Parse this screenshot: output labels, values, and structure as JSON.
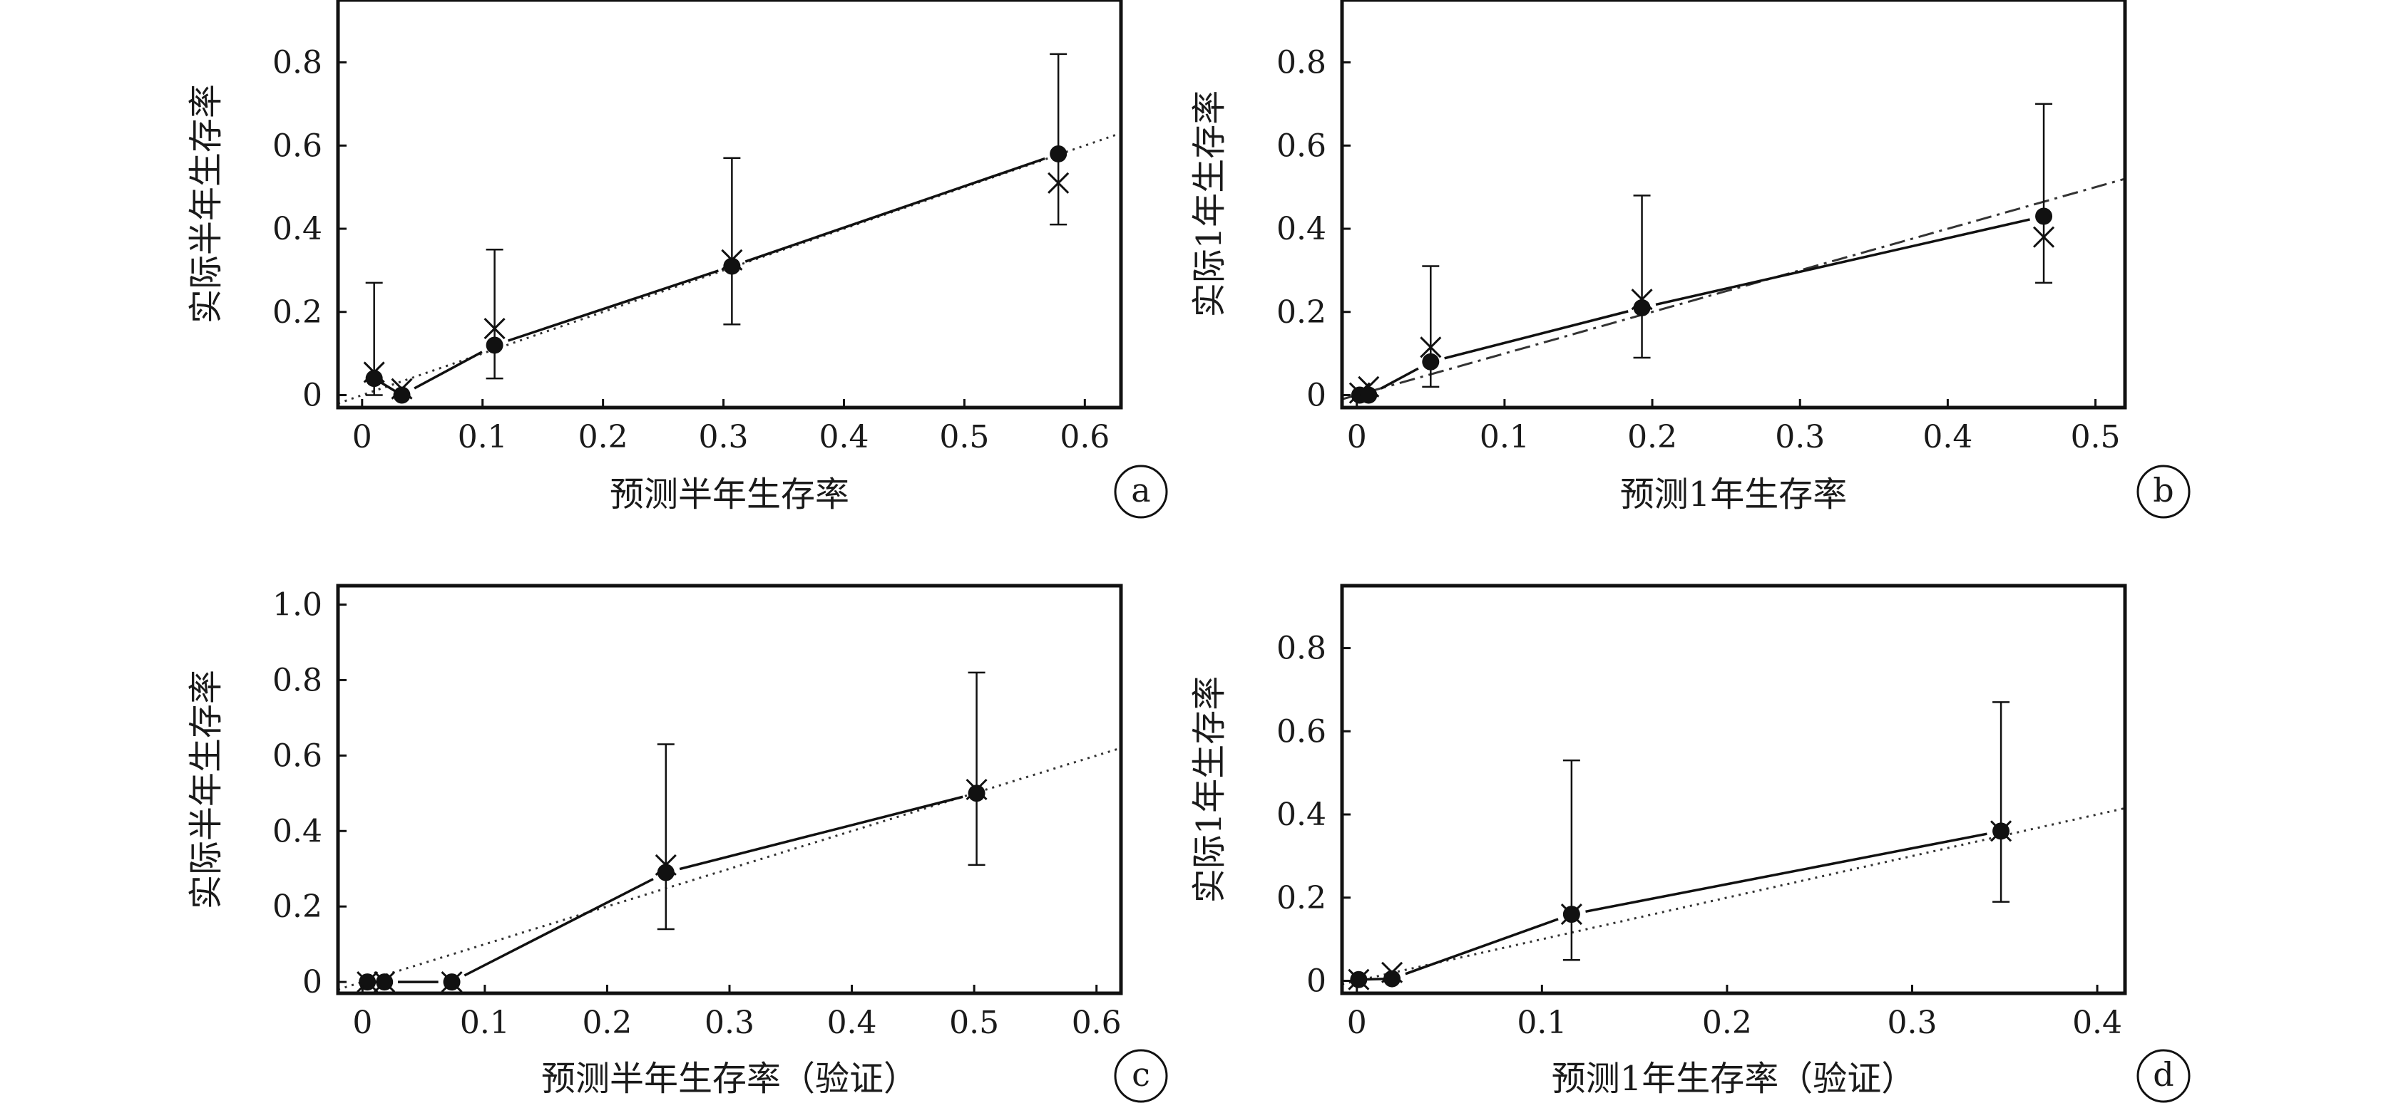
{
  "chart_data": [
    {
      "type": "scatter",
      "panel_label": "a",
      "xlabel": "预测半年生存率",
      "ylabel": "实际半年生存率",
      "xlim": [
        -0.02,
        0.63
      ],
      "ylim": [
        -0.03,
        0.95
      ],
      "xticks": [
        0,
        0.1,
        0.2,
        0.3,
        0.4,
        0.5,
        0.6
      ],
      "xtick_labels": [
        "0",
        "0.1",
        "0.2",
        "0.3",
        "0.4",
        "0.5",
        "0.6"
      ],
      "yticks": [
        0,
        0.2,
        0.4,
        0.6,
        0.8
      ],
      "ytick_labels": [
        "0",
        "0.2",
        "0.4",
        "0.6",
        "0.8"
      ],
      "reference_line_style": "dotted",
      "observed": [
        {
          "x": 0.01,
          "y": 0.04,
          "ci_low": 0.0,
          "ci_high": 0.27
        },
        {
          "x": 0.033,
          "y": 0.0,
          "ci_low": 0.0,
          "ci_high": 0.0
        },
        {
          "x": 0.11,
          "y": 0.12,
          "ci_low": 0.04,
          "ci_high": 0.35
        },
        {
          "x": 0.307,
          "y": 0.31,
          "ci_low": 0.17,
          "ci_high": 0.57
        },
        {
          "x": 0.578,
          "y": 0.58,
          "ci_low": 0.41,
          "ci_high": 0.82
        }
      ],
      "corrected": [
        {
          "x": 0.01,
          "y": 0.055
        },
        {
          "x": 0.033,
          "y": 0.015
        },
        {
          "x": 0.11,
          "y": 0.16
        },
        {
          "x": 0.307,
          "y": 0.325
        },
        {
          "x": 0.578,
          "y": 0.51
        }
      ]
    },
    {
      "type": "scatter",
      "panel_label": "b",
      "xlabel": "预测1年生存率",
      "ylabel": "实际1年生存率",
      "xlim": [
        -0.01,
        0.52
      ],
      "ylim": [
        -0.03,
        0.95
      ],
      "xticks": [
        0,
        0.1,
        0.2,
        0.3,
        0.4,
        0.5
      ],
      "xtick_labels": [
        "0",
        "0.1",
        "0.2",
        "0.3",
        "0.4",
        "0.5"
      ],
      "yticks": [
        0,
        0.2,
        0.4,
        0.6,
        0.8
      ],
      "ytick_labels": [
        "0",
        "0.2",
        "0.4",
        "0.6",
        "0.8"
      ],
      "reference_line_style": "dashdot",
      "observed": [
        {
          "x": 0.002,
          "y": 0.0,
          "ci_low": 0.0,
          "ci_high": 0.0
        },
        {
          "x": 0.008,
          "y": 0.0,
          "ci_low": 0.0,
          "ci_high": 0.0
        },
        {
          "x": 0.05,
          "y": 0.08,
          "ci_low": 0.02,
          "ci_high": 0.31
        },
        {
          "x": 0.193,
          "y": 0.21,
          "ci_low": 0.09,
          "ci_high": 0.48
        },
        {
          "x": 0.465,
          "y": 0.43,
          "ci_low": 0.27,
          "ci_high": 0.7
        }
      ],
      "corrected": [
        {
          "x": 0.002,
          "y": 0.005
        },
        {
          "x": 0.008,
          "y": 0.02
        },
        {
          "x": 0.05,
          "y": 0.115
        },
        {
          "x": 0.193,
          "y": 0.23
        },
        {
          "x": 0.465,
          "y": 0.38
        }
      ]
    },
    {
      "type": "scatter",
      "panel_label": "c",
      "xlabel": "预测半年生存率（验证）",
      "ylabel": "实际半年生存率",
      "xlim": [
        -0.02,
        0.62
      ],
      "ylim": [
        -0.03,
        1.05
      ],
      "xticks": [
        0,
        0.1,
        0.2,
        0.3,
        0.4,
        0.5,
        0.6
      ],
      "xtick_labels": [
        "0",
        "0.1",
        "0.2",
        "0.3",
        "0.4",
        "0.5",
        "0.6"
      ],
      "yticks": [
        0,
        0.2,
        0.4,
        0.6,
        0.8,
        1.0
      ],
      "ytick_labels": [
        "0",
        "0.2",
        "0.4",
        "0.6",
        "0.8",
        "1.0"
      ],
      "reference_line_style": "dotted",
      "observed": [
        {
          "x": 0.004,
          "y": 0.0,
          "ci_low": 0.0,
          "ci_high": 0.0
        },
        {
          "x": 0.018,
          "y": 0.0,
          "ci_low": 0.0,
          "ci_high": 0.0
        },
        {
          "x": 0.073,
          "y": 0.0,
          "ci_low": 0.0,
          "ci_high": 0.0
        },
        {
          "x": 0.248,
          "y": 0.29,
          "ci_low": 0.14,
          "ci_high": 0.63
        },
        {
          "x": 0.502,
          "y": 0.5,
          "ci_low": 0.31,
          "ci_high": 0.82
        }
      ],
      "corrected": [
        {
          "x": 0.004,
          "y": 0.0
        },
        {
          "x": 0.018,
          "y": 0.0
        },
        {
          "x": 0.073,
          "y": 0.0
        },
        {
          "x": 0.248,
          "y": 0.31
        },
        {
          "x": 0.502,
          "y": 0.51
        }
      ]
    },
    {
      "type": "scatter",
      "panel_label": "d",
      "xlabel": "预测1年生存率（验证）",
      "ylabel": "实际1年生存率",
      "xlim": [
        -0.008,
        0.415
      ],
      "ylim": [
        -0.03,
        0.95
      ],
      "xticks": [
        0,
        0.1,
        0.2,
        0.3,
        0.4
      ],
      "xtick_labels": [
        "0",
        "0.1",
        "0.2",
        "0.3",
        "0.4"
      ],
      "yticks": [
        0,
        0.2,
        0.4,
        0.6,
        0.8
      ],
      "ytick_labels": [
        "0",
        "0.2",
        "0.4",
        "0.6",
        "0.8"
      ],
      "reference_line_style": "dotted",
      "observed": [
        {
          "x": 0.001,
          "y": 0.003,
          "ci_low": 0.0,
          "ci_high": 0.0
        },
        {
          "x": 0.019,
          "y": 0.005,
          "ci_low": 0.0,
          "ci_high": 0.0
        },
        {
          "x": 0.116,
          "y": 0.16,
          "ci_low": 0.05,
          "ci_high": 0.53
        },
        {
          "x": 0.348,
          "y": 0.36,
          "ci_low": 0.19,
          "ci_high": 0.67
        }
      ],
      "corrected": [
        {
          "x": 0.001,
          "y": 0.003
        },
        {
          "x": 0.019,
          "y": 0.02
        },
        {
          "x": 0.116,
          "y": 0.16
        },
        {
          "x": 0.348,
          "y": 0.36
        }
      ]
    }
  ]
}
